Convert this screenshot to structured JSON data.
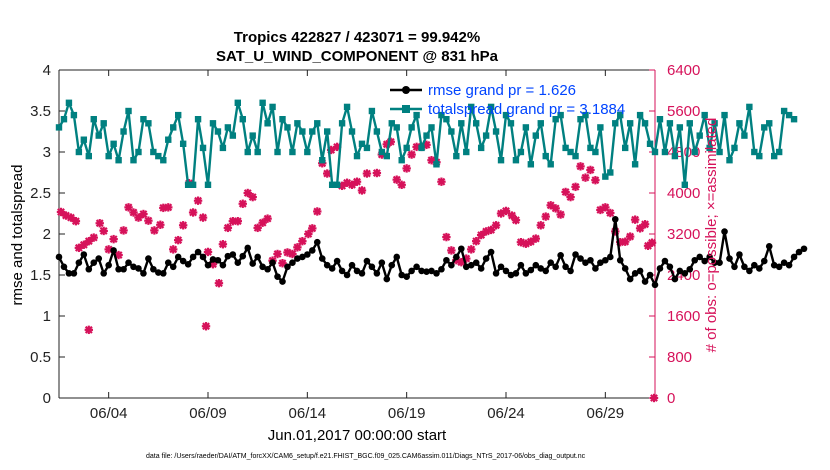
{
  "chart_data": {
    "type": "line",
    "title": "Tropics 422827 / 423071 = 99.942%",
    "subtitle": "SAT_U_WIND_COMPONENT @ 831 hPa",
    "xlabel": "Jun.01,2017 00:00:00 start",
    "ylabel": "rmse and totalspread",
    "y2label": "# of obs: o=possible; ×=assimilated",
    "xlim": [
      1.5,
      31.5
    ],
    "ylim": [
      0,
      4
    ],
    "y2lim": [
      0,
      6400
    ],
    "xticks": [
      4,
      9,
      14,
      19,
      24,
      29
    ],
    "xtick_labels": [
      "06/04",
      "06/09",
      "06/14",
      "06/19",
      "06/24",
      "06/29"
    ],
    "yticks": [
      "0",
      "0.5",
      "1",
      "1.5",
      "2",
      "2.5",
      "3",
      "3.5",
      "4"
    ],
    "y2ticks": [
      "0",
      "800",
      "1600",
      "2400",
      "3200",
      "4000",
      "4800",
      "5600",
      "6400"
    ],
    "legend": [
      "rmse grand pr = 1.626",
      "totalspread grand pr = 3.1884"
    ],
    "footnote": "data file: /Users/raeder/DAI/ATM_forcXX/CAM6_setup/f.e21.FHIST_BGC.f09_025.CAM6assim.011/Diags_NTrS_2017-06/obs_diag_output.nc",
    "colors": {
      "rmse": "#000000",
      "spread": "#008080",
      "obs": "#d6125a"
    },
    "series": [
      {
        "name": "rmse",
        "x_start": 1.5,
        "x_step": 0.25,
        "values": [
          1.72,
          1.6,
          1.52,
          1.52,
          1.65,
          1.75,
          1.57,
          1.65,
          1.7,
          1.52,
          1.62,
          1.8,
          1.57,
          1.57,
          1.65,
          1.6,
          1.58,
          1.52,
          1.7,
          1.57,
          1.53,
          1.52,
          1.65,
          1.6,
          1.72,
          1.67,
          1.63,
          1.72,
          1.78,
          1.72,
          1.62,
          1.69,
          1.68,
          1.62,
          1.73,
          1.75,
          1.65,
          1.73,
          1.83,
          1.64,
          1.72,
          1.6,
          1.57,
          1.65,
          1.48,
          1.42,
          1.6,
          1.65,
          1.7,
          1.72,
          1.75,
          1.8,
          1.9,
          1.7,
          1.62,
          1.58,
          1.67,
          1.55,
          1.5,
          1.62,
          1.55,
          1.52,
          1.67,
          1.6,
          1.52,
          1.65,
          1.45,
          1.62,
          1.72,
          1.5,
          1.48,
          1.55,
          1.6,
          1.55,
          1.54,
          1.55,
          1.52,
          1.57,
          1.68,
          1.62,
          1.72,
          1.82,
          1.6,
          1.62,
          1.65,
          1.58,
          1.7,
          1.78,
          1.52,
          1.6,
          1.55,
          1.5,
          1.52,
          1.62,
          1.52,
          1.56,
          1.62,
          1.58,
          1.55,
          1.65,
          1.6,
          1.74,
          1.6,
          1.55,
          1.75,
          1.7,
          1.65,
          1.68,
          1.58,
          1.65,
          1.68,
          1.72,
          2.18,
          1.68,
          1.58,
          1.45,
          1.52,
          1.55,
          1.42,
          1.5,
          1.38,
          1.58,
          1.67,
          1.6,
          1.45,
          1.55,
          1.52,
          1.57,
          1.68,
          1.72,
          1.67,
          1.72,
          1.65,
          1.65,
          2.03,
          1.7,
          1.6,
          1.75,
          1.6,
          1.55,
          1.62,
          1.58,
          1.67,
          1.85,
          1.62,
          1.6,
          1.65,
          1.62,
          1.72,
          1.78,
          1.82
        ]
      },
      {
        "name": "totalspread",
        "x_start": 1.5,
        "x_step": 0.25,
        "values": [
          3.3,
          3.4,
          3.6,
          3.45,
          3.0,
          3.15,
          2.95,
          3.4,
          3.2,
          3.35,
          2.95,
          3.1,
          2.9,
          3.25,
          3.5,
          2.9,
          3.0,
          3.4,
          3.35,
          3.0,
          2.95,
          2.9,
          3.15,
          3.3,
          3.45,
          3.1,
          2.6,
          2.6,
          3.4,
          3.05,
          2.6,
          3.35,
          3.25,
          3.05,
          3.3,
          3.2,
          3.6,
          3.4,
          3.0,
          3.2,
          3.0,
          3.6,
          3.35,
          3.55,
          3.0,
          3.4,
          3.3,
          3.0,
          3.35,
          3.25,
          3.0,
          3.25,
          3.35,
          2.9,
          3.25,
          2.6,
          2.6,
          3.35,
          3.55,
          3.25,
          2.95,
          3.1,
          3.05,
          3.5,
          3.25,
          3.0,
          2.95,
          3.35,
          3.3,
          2.9,
          3.05,
          3.3,
          3.45,
          3.05,
          3.2,
          3.3,
          2.85,
          3.45,
          3.4,
          3.25,
          2.95,
          3.35,
          3.0,
          3.55,
          3.35,
          3.05,
          3.2,
          3.55,
          3.25,
          2.9,
          3.45,
          3.35,
          2.9,
          3.0,
          3.3,
          2.85,
          3.2,
          3.35,
          2.95,
          2.85,
          3.4,
          3.45,
          3.05,
          3.0,
          2.95,
          3.4,
          3.45,
          3.05,
          3.0,
          3.3,
          2.7,
          2.75,
          3.35,
          3.45,
          3.05,
          3.35,
          2.85,
          3.45,
          3.35,
          3.1,
          3.0,
          3.4,
          3.0,
          3.35,
          2.95,
          3.3,
          2.6,
          3.35,
          3.0,
          3.2,
          3.45,
          3.05,
          3.35,
          3.0,
          3.45,
          2.9,
          3.05,
          3.35,
          3.2,
          3.55,
          3.0,
          2.95,
          3.3,
          3.35,
          2.95,
          3.0,
          3.5,
          3.45,
          3.4
        ]
      }
    ],
    "obs_markers": {
      "name": "# of obs assimilated",
      "axis": "right",
      "points": [
        [
          1.6,
          3630
        ],
        [
          1.85,
          3560
        ],
        [
          2.1,
          3520
        ],
        [
          2.35,
          3450
        ],
        [
          2.5,
          2930
        ],
        [
          2.75,
          2990
        ],
        [
          3.0,
          3060
        ],
        [
          3.25,
          3130
        ],
        [
          3.0,
          1330
        ],
        [
          3.55,
          3410
        ],
        [
          3.75,
          3260
        ],
        [
          4.0,
          2900
        ],
        [
          4.25,
          3100
        ],
        [
          4.5,
          2790
        ],
        [
          4.75,
          3270
        ],
        [
          5.0,
          3720
        ],
        [
          5.25,
          3620
        ],
        [
          5.5,
          3520
        ],
        [
          5.75,
          3590
        ],
        [
          6.0,
          3460
        ],
        [
          6.3,
          3270
        ],
        [
          6.6,
          3380
        ],
        [
          6.75,
          3710
        ],
        [
          7.0,
          3720
        ],
        [
          7.25,
          2900
        ],
        [
          7.5,
          3080
        ],
        [
          7.75,
          3370
        ],
        [
          8.05,
          4190
        ],
        [
          8.25,
          3620
        ],
        [
          8.5,
          3850
        ],
        [
          8.75,
          3520
        ],
        [
          9.0,
          2850
        ],
        [
          8.9,
          1400
        ],
        [
          9.25,
          2610
        ],
        [
          9.55,
          2240
        ],
        [
          9.75,
          3000
        ],
        [
          10.0,
          3320
        ],
        [
          10.25,
          3450
        ],
        [
          10.5,
          3450
        ],
        [
          10.75,
          3790
        ],
        [
          11.0,
          4000
        ],
        [
          11.25,
          3920
        ],
        [
          11.5,
          3320
        ],
        [
          11.75,
          3420
        ],
        [
          12.0,
          3500
        ],
        [
          12.25,
          2680
        ],
        [
          12.5,
          2810
        ],
        [
          12.75,
          2630
        ],
        [
          13.0,
          2840
        ],
        [
          13.25,
          2810
        ],
        [
          13.5,
          2940
        ],
        [
          13.75,
          3060
        ],
        [
          14.05,
          3200
        ],
        [
          14.25,
          3310
        ],
        [
          14.5,
          3640
        ],
        [
          14.75,
          4580
        ],
        [
          15.0,
          4380
        ],
        [
          15.2,
          4840
        ],
        [
          15.5,
          4900
        ],
        [
          15.75,
          4140
        ],
        [
          16.0,
          4200
        ],
        [
          16.25,
          4160
        ],
        [
          16.5,
          4220
        ],
        [
          16.75,
          4050
        ],
        [
          17.0,
          4380
        ],
        [
          17.5,
          4390
        ],
        [
          17.75,
          4750
        ],
        [
          18.0,
          4950
        ],
        [
          18.2,
          5000
        ],
        [
          18.5,
          4260
        ],
        [
          18.75,
          4160
        ],
        [
          19.0,
          4480
        ],
        [
          19.25,
          4750
        ],
        [
          19.5,
          4900
        ],
        [
          19.75,
          4900
        ],
        [
          20.0,
          4940
        ],
        [
          20.25,
          4640
        ],
        [
          20.5,
          4600
        ],
        [
          20.75,
          4220
        ],
        [
          21.0,
          3140
        ],
        [
          21.25,
          2880
        ],
        [
          21.5,
          2690
        ],
        [
          21.75,
          2650
        ],
        [
          22.0,
          2720
        ],
        [
          22.25,
          2900
        ],
        [
          22.5,
          3060
        ],
        [
          22.75,
          3180
        ],
        [
          23.0,
          3250
        ],
        [
          23.25,
          3280
        ],
        [
          23.5,
          3370
        ],
        [
          23.75,
          3600
        ],
        [
          24.0,
          3650
        ],
        [
          24.3,
          3560
        ],
        [
          24.5,
          3470
        ],
        [
          24.75,
          3040
        ],
        [
          25.0,
          3010
        ],
        [
          25.25,
          3050
        ],
        [
          25.5,
          3110
        ],
        [
          25.75,
          3370
        ],
        [
          26.0,
          3540
        ],
        [
          26.25,
          3760
        ],
        [
          26.5,
          3700
        ],
        [
          26.75,
          3580
        ],
        [
          27.0,
          4020
        ],
        [
          27.25,
          3920
        ],
        [
          27.5,
          4120
        ],
        [
          27.75,
          4520
        ],
        [
          28.0,
          4300
        ],
        [
          28.25,
          4450
        ],
        [
          28.5,
          4250
        ],
        [
          28.75,
          3670
        ],
        [
          29.0,
          3720
        ],
        [
          29.25,
          3610
        ],
        [
          29.5,
          3250
        ],
        [
          29.75,
          3040
        ],
        [
          30.0,
          3050
        ],
        [
          30.25,
          3150
        ],
        [
          30.5,
          3480
        ],
        [
          30.75,
          3310
        ],
        [
          31.0,
          3390
        ],
        [
          31.15,
          2970
        ],
        [
          31.35,
          3030
        ]
      ],
      "zero_marker": [
        31.45,
        0
      ]
    }
  }
}
